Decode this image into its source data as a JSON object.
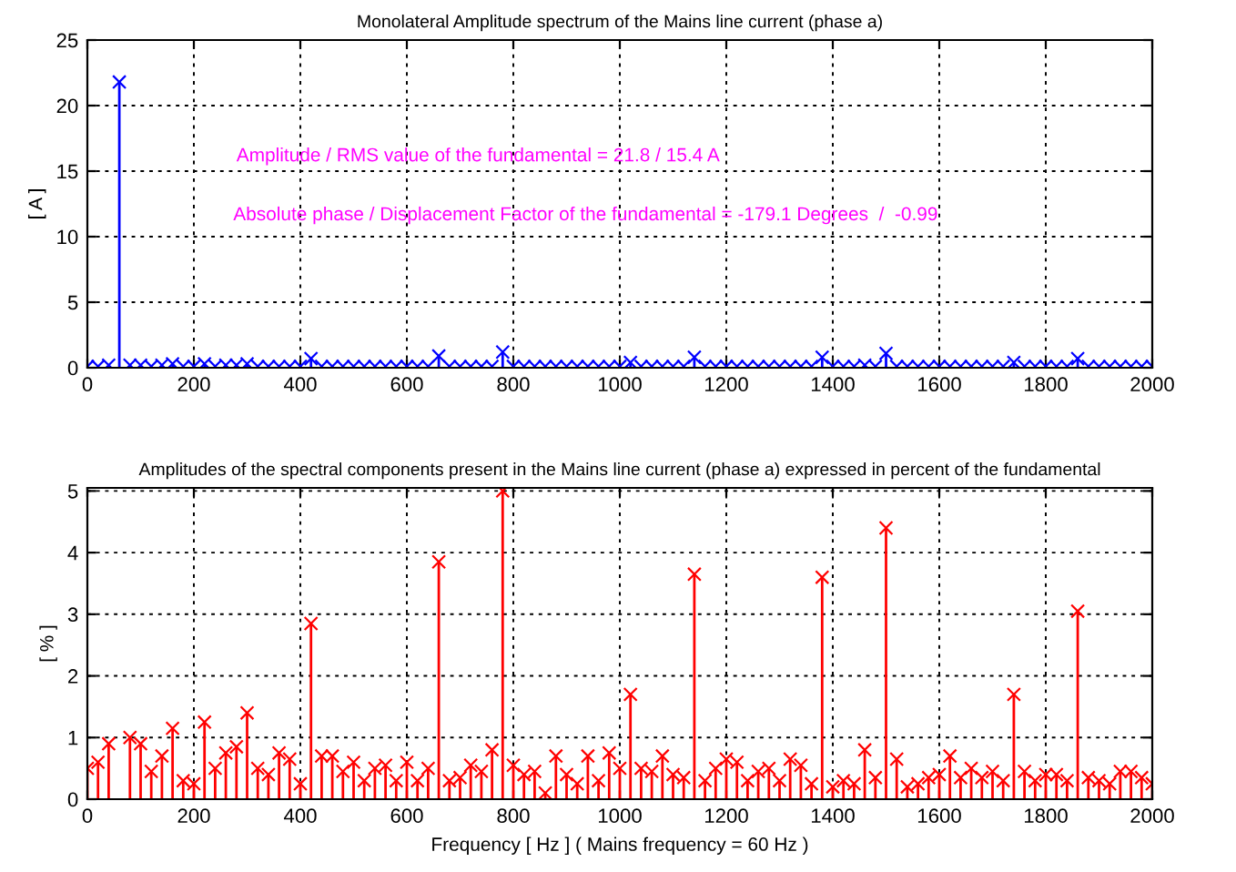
{
  "chart_data": [
    {
      "type": "lollipop",
      "title": "Monolateral Amplitude spectrum of the Mains line current (phase a)",
      "ylabel": "[ A ]",
      "annotations": [
        "Amplitude / RMS value of the fundamental = 21.8 / 15.4 A",
        "Absolute phase / Displacement Factor of the fundamental = -179.1 Degrees  /  -0.99"
      ],
      "x": [
        0,
        20,
        40,
        60,
        80,
        100,
        120,
        140,
        160,
        180,
        200,
        220,
        240,
        260,
        280,
        300,
        320,
        340,
        360,
        380,
        400,
        420,
        440,
        460,
        480,
        500,
        520,
        540,
        560,
        580,
        600,
        620,
        640,
        660,
        680,
        700,
        720,
        740,
        760,
        780,
        800,
        820,
        840,
        860,
        880,
        900,
        920,
        940,
        960,
        980,
        1000,
        1020,
        1040,
        1060,
        1080,
        1100,
        1120,
        1140,
        1160,
        1180,
        1200,
        1220,
        1240,
        1260,
        1280,
        1300,
        1320,
        1340,
        1360,
        1380,
        1400,
        1420,
        1440,
        1460,
        1480,
        1500,
        1520,
        1540,
        1560,
        1580,
        1600,
        1620,
        1640,
        1660,
        1680,
        1700,
        1720,
        1740,
        1760,
        1780,
        1800,
        1820,
        1840,
        1860,
        1880,
        1900,
        1920,
        1940,
        1960,
        1980,
        2000
      ],
      "series": [
        {
          "color": "#0000ff",
          "values": [
            0.1,
            0.1,
            0.2,
            21.8,
            0.2,
            0.2,
            0.1,
            0.2,
            0.3,
            0.1,
            0.1,
            0.3,
            0.1,
            0.2,
            0.2,
            0.3,
            0.1,
            0.1,
            0.1,
            0.1,
            0.1,
            0.7,
            0.1,
            0.1,
            0.1,
            0.1,
            0.1,
            0.1,
            0.1,
            0.1,
            0.1,
            0.1,
            0.1,
            0.9,
            0.1,
            0.1,
            0.1,
            0.1,
            0.1,
            1.2,
            0.1,
            0.1,
            0.1,
            0.1,
            0.1,
            0.1,
            0.1,
            0.1,
            0.1,
            0.1,
            0.1,
            0.4,
            0.1,
            0.1,
            0.1,
            0.1,
            0.1,
            0.8,
            0.1,
            0.1,
            0.1,
            0.1,
            0.1,
            0.1,
            0.1,
            0.1,
            0.1,
            0.1,
            0.1,
            0.8,
            0.1,
            0.1,
            0.1,
            0.2,
            0.1,
            1.1,
            0.1,
            0.1,
            0.1,
            0.1,
            0.1,
            0.1,
            0.1,
            0.1,
            0.1,
            0.1,
            0.1,
            0.4,
            0.1,
            0.1,
            0.1,
            0.1,
            0.1,
            0.7,
            0.1,
            0.1,
            0.1,
            0.1,
            0.1,
            0.1,
            0.1
          ]
        }
      ],
      "xlim": [
        0,
        2000
      ],
      "xticks": [
        0,
        200,
        400,
        600,
        800,
        1000,
        1200,
        1400,
        1600,
        1800,
        2000
      ],
      "ylim": [
        0,
        25
      ],
      "yticks": [
        0,
        5,
        10,
        15,
        20,
        25
      ],
      "grid": true,
      "marker": "cross"
    },
    {
      "type": "lollipop",
      "title": "Amplitudes of the spectral components present in the Mains line current (phase a) expressed in percent of the fundamental",
      "ylabel": "[ % ]",
      "xlabel": "Frequency [ Hz ] ( Mains frequency = 60 Hz )",
      "x": [
        0,
        20,
        40,
        60,
        80,
        100,
        120,
        140,
        160,
        180,
        200,
        220,
        240,
        260,
        280,
        300,
        320,
        340,
        360,
        380,
        400,
        420,
        440,
        460,
        480,
        500,
        520,
        540,
        560,
        580,
        600,
        620,
        640,
        660,
        680,
        700,
        720,
        740,
        760,
        780,
        800,
        820,
        840,
        860,
        880,
        900,
        920,
        940,
        960,
        980,
        1000,
        1020,
        1040,
        1060,
        1080,
        1100,
        1120,
        1140,
        1160,
        1180,
        1200,
        1220,
        1240,
        1260,
        1280,
        1300,
        1320,
        1340,
        1360,
        1380,
        1400,
        1420,
        1440,
        1460,
        1480,
        1500,
        1520,
        1540,
        1560,
        1580,
        1600,
        1620,
        1640,
        1660,
        1680,
        1700,
        1720,
        1740,
        1760,
        1780,
        1800,
        1820,
        1840,
        1860,
        1880,
        1900,
        1920,
        1940,
        1960,
        1980,
        2000
      ],
      "series": [
        {
          "color": "#ff0000",
          "values": [
            0.5,
            0.6,
            0.9,
            null,
            1.0,
            0.9,
            0.45,
            0.7,
            1.15,
            0.3,
            0.25,
            1.25,
            0.5,
            0.75,
            0.85,
            1.4,
            0.5,
            0.4,
            0.75,
            0.65,
            0.25,
            2.85,
            0.7,
            0.7,
            0.45,
            0.6,
            0.3,
            0.5,
            0.55,
            0.3,
            0.6,
            0.3,
            0.5,
            3.85,
            0.3,
            0.35,
            0.55,
            0.45,
            0.8,
            5.0,
            0.55,
            0.4,
            0.45,
            0.1,
            0.7,
            0.4,
            0.25,
            0.7,
            0.3,
            0.75,
            0.5,
            1.7,
            0.5,
            0.45,
            0.7,
            0.4,
            0.35,
            3.65,
            0.3,
            0.5,
            0.65,
            0.6,
            0.3,
            0.45,
            0.5,
            0.3,
            0.65,
            0.55,
            0.25,
            3.6,
            0.2,
            0.3,
            0.25,
            0.8,
            0.35,
            4.4,
            0.65,
            0.2,
            0.25,
            0.35,
            0.4,
            0.7,
            0.35,
            0.5,
            0.35,
            0.45,
            0.3,
            1.7,
            0.45,
            0.3,
            0.4,
            0.4,
            0.3,
            3.05,
            0.35,
            0.3,
            0.25,
            0.45,
            0.45,
            0.35,
            0.25
          ]
        }
      ],
      "xlim": [
        0,
        2000
      ],
      "xticks": [
        0,
        200,
        400,
        600,
        800,
        1000,
        1200,
        1400,
        1600,
        1800,
        2000
      ],
      "ylim": [
        0,
        5.05
      ],
      "yticks": [
        0,
        1,
        2,
        3,
        4,
        5
      ],
      "grid": true,
      "marker": "cross"
    }
  ]
}
